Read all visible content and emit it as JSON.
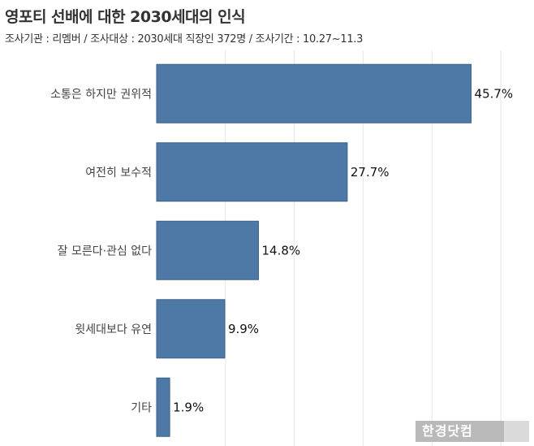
{
  "header": {
    "title": "영포티 선배에 대한 2030세대의 인식",
    "subtitle": "조사기관 : 리멤버 / 조사대상 : 2030세대 직장인 372명 / 조사기간 : 10.27~11.3"
  },
  "chart_data": {
    "type": "bar",
    "orientation": "horizontal",
    "categories": [
      "소통은 하지만 권위적",
      "여전히 보수적",
      "잘 모른다·관심 없다",
      "윗세대보다 유연",
      "기타"
    ],
    "values": [
      45.7,
      27.7,
      14.8,
      9.9,
      1.9
    ],
    "value_labels": [
      "45.7%",
      "27.7%",
      "14.8%",
      "9.9%",
      "1.9%"
    ],
    "xlim": [
      0,
      50
    ],
    "grid": true,
    "bar_color": "#4e79a7"
  },
  "watermark": {
    "text": "한경닷컴"
  }
}
